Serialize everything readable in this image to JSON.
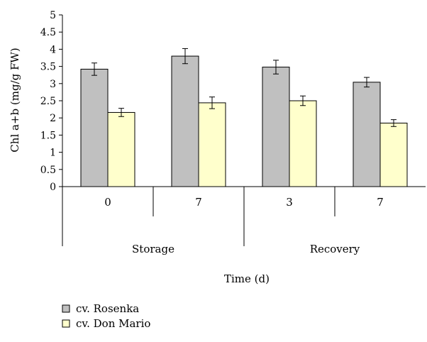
{
  "chart_data": {
    "type": "bar",
    "ylabel": "Chl a+b (mg/g FW)",
    "xlabel": "Time (d)",
    "ylim": [
      0,
      5
    ],
    "yticks": [
      "0",
      "0.5",
      "1",
      "1.5",
      "2",
      "2.5",
      "3",
      "3.5",
      "4",
      "4.5",
      "5"
    ],
    "categories": [
      "0",
      "7",
      "3",
      "7"
    ],
    "groups": [
      {
        "label": "Storage",
        "span": [
          0,
          1
        ]
      },
      {
        "label": "Recovery",
        "span": [
          2,
          3
        ]
      }
    ],
    "series": [
      {
        "name": "cv. Rosenka",
        "color": "#c0c0c0",
        "values": [
          3.42,
          3.8,
          3.48,
          3.04
        ],
        "errors": [
          0.18,
          0.22,
          0.2,
          0.14
        ]
      },
      {
        "name": "cv. Don Mario",
        "color": "#ffffcc",
        "values": [
          2.16,
          2.44,
          2.5,
          1.85
        ],
        "errors": [
          0.12,
          0.17,
          0.14,
          0.1
        ]
      }
    ],
    "legend": "bottom-left",
    "grid": false
  }
}
